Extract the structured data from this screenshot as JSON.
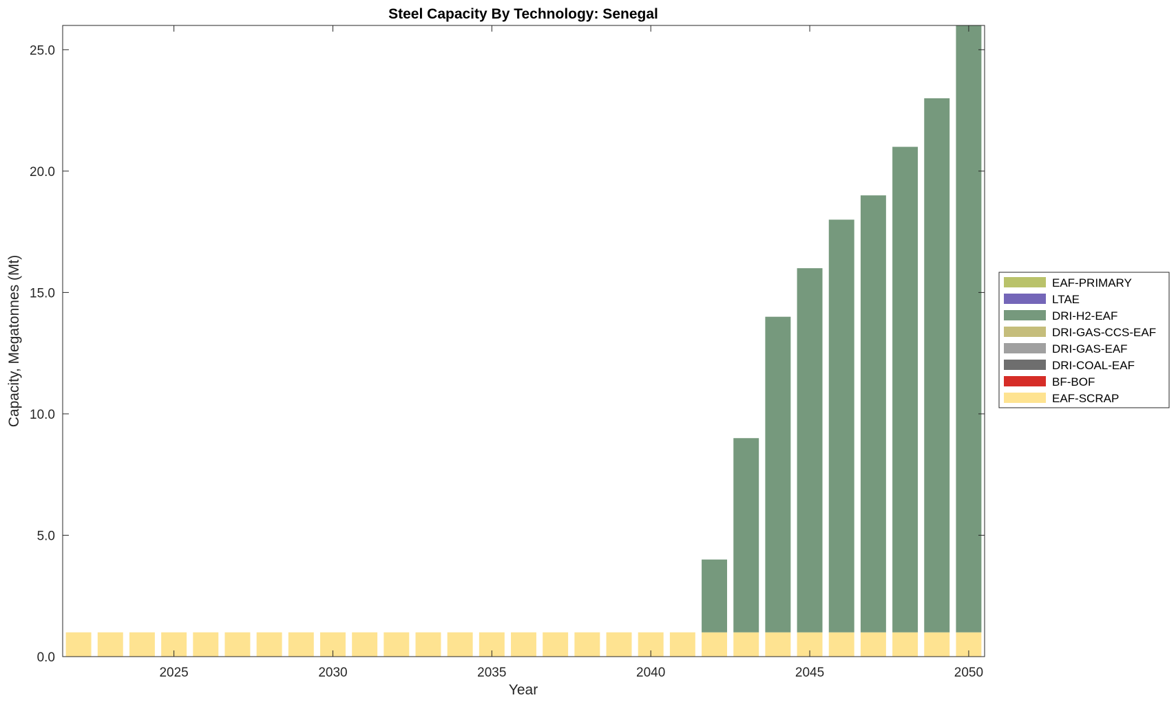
{
  "chart_data": {
    "type": "bar",
    "stacked": true,
    "title": "Steel Capacity By Technology: Senegal",
    "xlabel": "Year",
    "ylabel": "Capacity, Megatonnes (Mt)",
    "x": [
      2022,
      2023,
      2024,
      2025,
      2026,
      2027,
      2028,
      2029,
      2030,
      2031,
      2032,
      2033,
      2034,
      2035,
      2036,
      2037,
      2038,
      2039,
      2040,
      2041,
      2042,
      2043,
      2044,
      2045,
      2046,
      2047,
      2048,
      2049,
      2050
    ],
    "xlim": [
      2021.5,
      2050.5
    ],
    "ylim": [
      0,
      26
    ],
    "xticks": [
      2025,
      2030,
      2035,
      2040,
      2045,
      2050
    ],
    "yticks": [
      0,
      5,
      10,
      15,
      20,
      25
    ],
    "ytick_labels": [
      "0.0",
      "5.0",
      "10.0",
      "15.0",
      "20.0",
      "25.0"
    ],
    "legend_position": "right",
    "grid": false,
    "series": [
      {
        "name": "EAF-SCRAP",
        "color": "#fee391",
        "values": [
          1,
          1,
          1,
          1,
          1,
          1,
          1,
          1,
          1,
          1,
          1,
          1,
          1,
          1,
          1,
          1,
          1,
          1,
          1,
          1,
          1,
          1,
          1,
          1,
          1,
          1,
          1,
          1,
          1
        ]
      },
      {
        "name": "BF-BOF",
        "color": "#d62d27",
        "values": [
          0,
          0,
          0,
          0,
          0,
          0,
          0,
          0,
          0,
          0,
          0,
          0,
          0,
          0,
          0,
          0,
          0,
          0,
          0,
          0,
          0,
          0,
          0,
          0,
          0,
          0,
          0,
          0,
          0
        ]
      },
      {
        "name": "DRI-COAL-EAF",
        "color": "#6e6e6e",
        "values": [
          0,
          0,
          0,
          0,
          0,
          0,
          0,
          0,
          0,
          0,
          0,
          0,
          0,
          0,
          0,
          0,
          0,
          0,
          0,
          0,
          0,
          0,
          0,
          0,
          0,
          0,
          0,
          0,
          0
        ]
      },
      {
        "name": "DRI-GAS-EAF",
        "color": "#a0a0a0",
        "values": [
          0,
          0,
          0,
          0,
          0,
          0,
          0,
          0,
          0,
          0,
          0,
          0,
          0,
          0,
          0,
          0,
          0,
          0,
          0,
          0,
          0,
          0,
          0,
          0,
          0,
          0,
          0,
          0,
          0
        ]
      },
      {
        "name": "DRI-GAS-CCS-EAF",
        "color": "#c5bd7b",
        "values": [
          0,
          0,
          0,
          0,
          0,
          0,
          0,
          0,
          0,
          0,
          0,
          0,
          0,
          0,
          0,
          0,
          0,
          0,
          0,
          0,
          0,
          0,
          0,
          0,
          0,
          0,
          0,
          0,
          0
        ]
      },
      {
        "name": "DRI-H2-EAF",
        "color": "#76997d",
        "values": [
          0,
          0,
          0,
          0,
          0,
          0,
          0,
          0,
          0,
          0,
          0,
          0,
          0,
          0,
          0,
          0,
          0,
          0,
          0,
          0,
          3,
          8,
          13,
          15,
          17,
          18,
          20,
          22,
          25
        ]
      },
      {
        "name": "LTAE",
        "color": "#7466b8",
        "values": [
          0,
          0,
          0,
          0,
          0,
          0,
          0,
          0,
          0,
          0,
          0,
          0,
          0,
          0,
          0,
          0,
          0,
          0,
          0,
          0,
          0,
          0,
          0,
          0,
          0,
          0,
          0,
          0,
          0
        ]
      },
      {
        "name": "EAF-PRIMARY",
        "color": "#b9c26a",
        "values": [
          0,
          0,
          0,
          0,
          0,
          0,
          0,
          0,
          0,
          0,
          0,
          0,
          0,
          0,
          0,
          0,
          0,
          0,
          0,
          0,
          0,
          0,
          0,
          0,
          0,
          0,
          0,
          0,
          0
        ]
      }
    ]
  }
}
